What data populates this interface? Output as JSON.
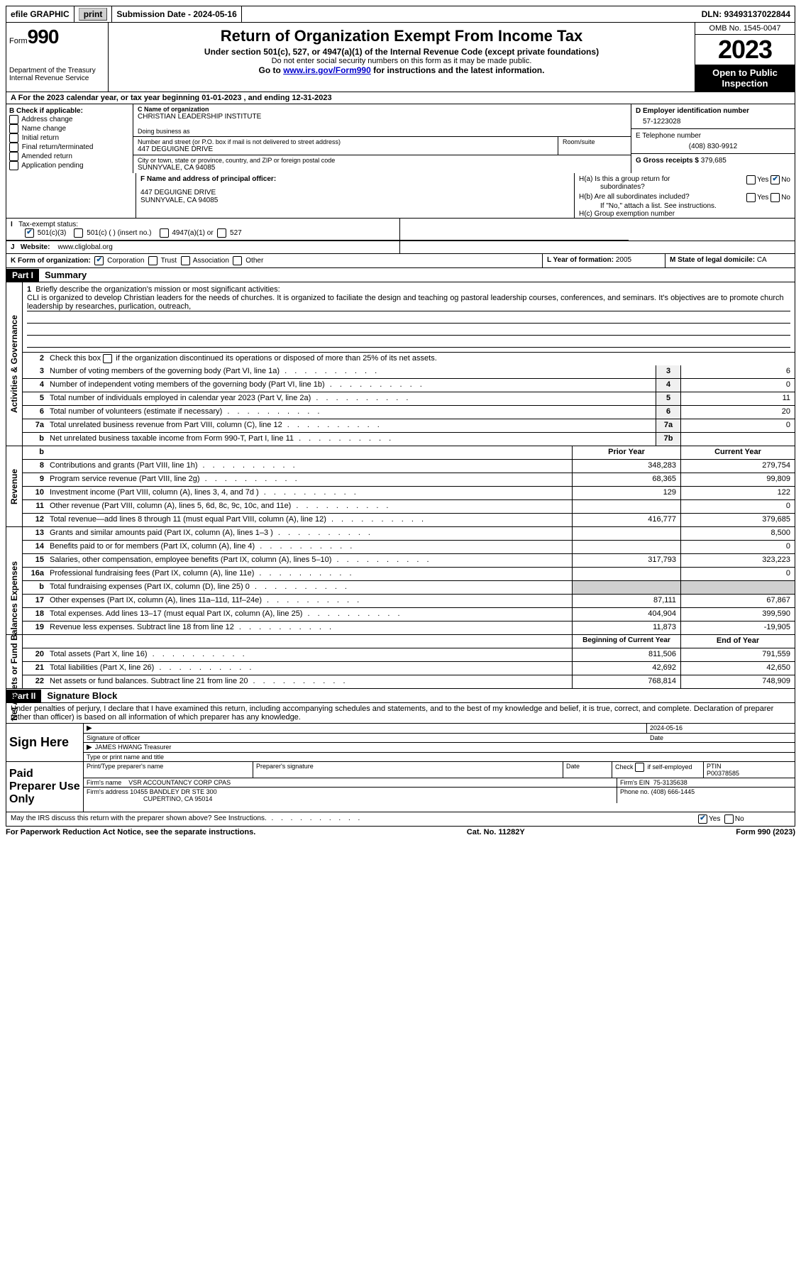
{
  "topbar": {
    "efile_label": "efile GRAPHIC",
    "print_btn": "print",
    "submission_label": "Submission Date - 2024-05-16",
    "dln_label": "DLN: 93493137022844"
  },
  "header": {
    "form_label": "Form",
    "form_number": "990",
    "dept": "Department of the Treasury",
    "irs": "Internal Revenue Service",
    "title": "Return of Organization Exempt From Income Tax",
    "subtitle": "Under section 501(c), 527, or 4947(a)(1) of the Internal Revenue Code (except private foundations)",
    "note1": "Do not enter social security numbers on this form as it may be made public.",
    "note2_pre": "Go to ",
    "note2_link": "www.irs.gov/Form990",
    "note2_post": " for instructions and the latest information.",
    "omb": "OMB No. 1545-0047",
    "year": "2023",
    "inspect": "Open to Public Inspection"
  },
  "row_a": "A For the 2023 calendar year, or tax year beginning 01-01-2023   , and ending 12-31-2023",
  "section_b": {
    "label": "B Check if applicable:",
    "items": [
      "Address change",
      "Name change",
      "Initial return",
      "Final return/terminated",
      "Amended return",
      "Application pending"
    ]
  },
  "section_c": {
    "name_label": "C Name of organization",
    "name": "CHRISTIAN LEADERSHIP INSTITUTE",
    "dba_label": "Doing business as",
    "street_label": "Number and street (or P.O. box if mail is not delivered to street address)",
    "street": "447 DEGUIGNE DRIVE",
    "room_label": "Room/suite",
    "city_label": "City or town, state or province, country, and ZIP or foreign postal code",
    "city": "SUNNYVALE, CA  94085"
  },
  "section_d": {
    "label": "D Employer identification number",
    "value": "57-1223028"
  },
  "section_e": {
    "label": "E Telephone number",
    "value": "(408) 830-9912"
  },
  "section_g": {
    "label": "G Gross receipts $",
    "value": "379,685"
  },
  "section_f": {
    "label": "F  Name and address of principal officer:",
    "addr1": "447 DEGUIGNE DRIVE",
    "addr2": "SUNNYVALE, CA  94085"
  },
  "section_h": {
    "a": "H(a)  Is this a group return for",
    "a2": "subordinates?",
    "b": "H(b)  Are all subordinates included?",
    "b_note": "If \"No,\" attach a list. See instructions.",
    "c": "H(c)  Group exemption number",
    "yes": "Yes",
    "no": "No"
  },
  "section_i": {
    "label": "Tax-exempt status:",
    "opt1": "501(c)(3)",
    "opt2": "501(c) (  ) (insert no.)",
    "opt3": "4947(a)(1) or",
    "opt4": "527"
  },
  "section_j": {
    "label": "Website:",
    "value": "www.cliglobal.org"
  },
  "section_k": {
    "label": "K Form of organization:",
    "opts": [
      "Corporation",
      "Trust",
      "Association",
      "Other"
    ]
  },
  "section_l": {
    "label": "L Year of formation:",
    "value": "2005"
  },
  "section_m": {
    "label": "M State of legal domicile:",
    "value": "CA"
  },
  "part1": {
    "header": "Part I",
    "title": "Summary"
  },
  "summary": {
    "q1_label": "Briefly describe the organization's mission or most significant activities:",
    "q1_text": "CLI is organized to develop Christian leaders for the needs of churches. It is organized to faciliate the design and teaching og pastoral leadership courses, conferences, and seminars. It's objectives are to promote church leadership by researches, purlication, outreach,",
    "q2": "Check this box      if the organization discontinued its operations or disposed of more than 25% of its net assets.",
    "rows_gov": [
      {
        "n": "3",
        "t": "Number of voting members of the governing body (Part VI, line 1a)",
        "box": "3",
        "v": "6"
      },
      {
        "n": "4",
        "t": "Number of independent voting members of the governing body (Part VI, line 1b)",
        "box": "4",
        "v": "0"
      },
      {
        "n": "5",
        "t": "Total number of individuals employed in calendar year 2023 (Part V, line 2a)",
        "box": "5",
        "v": "11"
      },
      {
        "n": "6",
        "t": "Total number of volunteers (estimate if necessary)",
        "box": "6",
        "v": "20"
      },
      {
        "n": "7a",
        "t": "Total unrelated business revenue from Part VIII, column (C), line 12",
        "box": "7a",
        "v": "0"
      },
      {
        "n": "b",
        "t": "Net unrelated business taxable income from Form 990-T, Part I, line 11",
        "box": "7b",
        "v": ""
      }
    ],
    "col_headers": {
      "prior": "Prior Year",
      "current": "Current Year"
    },
    "rows_rev": [
      {
        "n": "8",
        "t": "Contributions and grants (Part VIII, line 1h)",
        "p": "348,283",
        "c": "279,754"
      },
      {
        "n": "9",
        "t": "Program service revenue (Part VIII, line 2g)",
        "p": "68,365",
        "c": "99,809"
      },
      {
        "n": "10",
        "t": "Investment income (Part VIII, column (A), lines 3, 4, and 7d )",
        "p": "129",
        "c": "122"
      },
      {
        "n": "11",
        "t": "Other revenue (Part VIII, column (A), lines 5, 6d, 8c, 9c, 10c, and 11e)",
        "p": "",
        "c": "0"
      },
      {
        "n": "12",
        "t": "Total revenue—add lines 8 through 11 (must equal Part VIII, column (A), line 12)",
        "p": "416,777",
        "c": "379,685"
      }
    ],
    "rows_exp": [
      {
        "n": "13",
        "t": "Grants and similar amounts paid (Part IX, column (A), lines 1–3 )",
        "p": "",
        "c": "8,500"
      },
      {
        "n": "14",
        "t": "Benefits paid to or for members (Part IX, column (A), line 4)",
        "p": "",
        "c": "0"
      },
      {
        "n": "15",
        "t": "Salaries, other compensation, employee benefits (Part IX, column (A), lines 5–10)",
        "p": "317,793",
        "c": "323,223"
      },
      {
        "n": "16a",
        "t": "Professional fundraising fees (Part IX, column (A), line 11e)",
        "p": "",
        "c": "0"
      },
      {
        "n": "b",
        "t": "Total fundraising expenses (Part IX, column (D), line 25) 0",
        "p": "SHADE",
        "c": "SHADE"
      },
      {
        "n": "17",
        "t": "Other expenses (Part IX, column (A), lines 11a–11d, 11f–24e)",
        "p": "87,111",
        "c": "67,867"
      },
      {
        "n": "18",
        "t": "Total expenses. Add lines 13–17 (must equal Part IX, column (A), line 25)",
        "p": "404,904",
        "c": "399,590"
      },
      {
        "n": "19",
        "t": "Revenue less expenses. Subtract line 18 from line 12",
        "p": "11,873",
        "c": "-19,905"
      }
    ],
    "col_headers2": {
      "begin": "Beginning of Current Year",
      "end": "End of Year"
    },
    "rows_net": [
      {
        "n": "20",
        "t": "Total assets (Part X, line 16)",
        "p": "811,506",
        "c": "791,559"
      },
      {
        "n": "21",
        "t": "Total liabilities (Part X, line 26)",
        "p": "42,692",
        "c": "42,650"
      },
      {
        "n": "22",
        "t": "Net assets or fund balances. Subtract line 21 from line 20",
        "p": "768,814",
        "c": "748,909"
      }
    ],
    "side_labels": {
      "gov": "Activities & Governance",
      "rev": "Revenue",
      "exp": "Expenses",
      "net": "Net Assets or Fund Balances"
    }
  },
  "part2": {
    "header": "Part II",
    "title": "Signature Block"
  },
  "sig": {
    "declaration": "Under penalties of perjury, I declare that I have examined this return, including accompanying schedules and statements, and to the best of my knowledge and belief, it is true, correct, and complete. Declaration of preparer (other than officer) is based on all information of which preparer has any knowledge.",
    "sign_here": "Sign Here",
    "date_top": "2024-05-16",
    "sig_officer_label": "Signature of officer",
    "sig_officer": "JAMES HWANG  Treasurer",
    "type_label": "Type or print name and title",
    "date_label": "Date",
    "paid": "Paid Preparer Use Only",
    "prep_name_label": "Print/Type preparer's name",
    "prep_sig_label": "Preparer's signature",
    "check_label": "Check        if self-employed",
    "ptin_label": "PTIN",
    "ptin": "P00378585",
    "firm_name_label": "Firm's name",
    "firm_name": "VSR ACCOUNTANCY CORP CPAS",
    "firm_ein_label": "Firm's EIN",
    "firm_ein": "75-3135638",
    "firm_addr_label": "Firm's address",
    "firm_addr1": "10455 BANDLEY DR STE 300",
    "firm_addr2": "CUPERTINO, CA  95014",
    "phone_label": "Phone no.",
    "phone": "(408) 666-1445",
    "discuss": "May the IRS discuss this return with the preparer shown above? See Instructions.",
    "yes": "Yes",
    "no": "No"
  },
  "footer": {
    "left": "For Paperwork Reduction Act Notice, see the separate instructions.",
    "center": "Cat. No. 11282Y",
    "right": "Form 990 (2023)"
  }
}
